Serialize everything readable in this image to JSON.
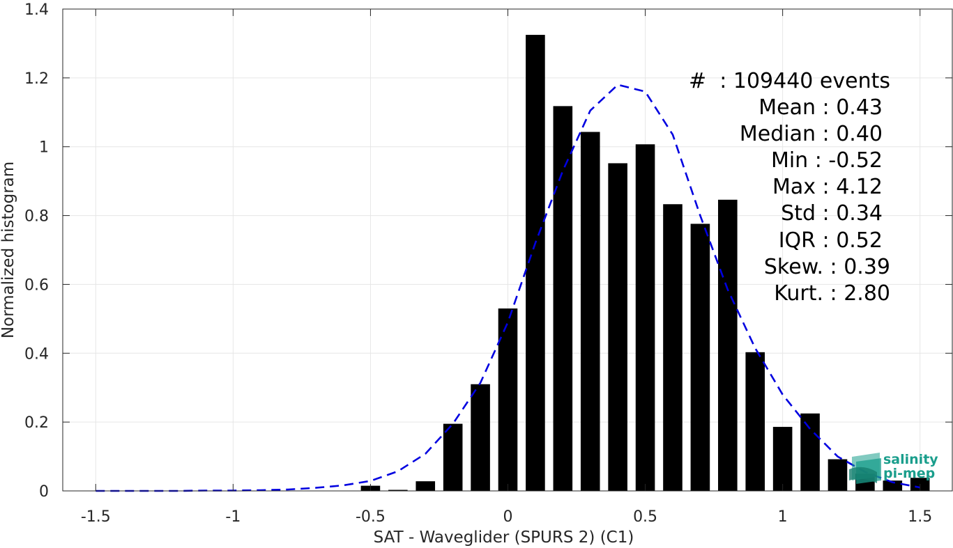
{
  "chart_data": {
    "type": "bar",
    "xlabel": "SAT - Waveglider (SPURS 2) (C1)",
    "ylabel": "Normalized histogram",
    "xlim": [
      -1.62,
      1.62
    ],
    "ylim": [
      0,
      1.4
    ],
    "grid": true,
    "x_ticks": [
      -1.5,
      -1,
      -0.5,
      0,
      0.5,
      1,
      1.5
    ],
    "x_tick_labels": [
      "-1.5",
      "-1",
      "-0.5",
      "0",
      "0.5",
      "1",
      "1.5"
    ],
    "y_ticks": [
      0,
      0.2,
      0.4,
      0.6,
      0.8,
      1,
      1.2,
      1.4
    ],
    "y_tick_labels": [
      "0",
      "0.2",
      "0.4",
      "0.6",
      "0.8",
      "1",
      "1.2",
      "1.4"
    ],
    "bar_width": 0.07,
    "bar_color": "#000000",
    "bars": {
      "x": [
        -0.5,
        -0.4,
        -0.3,
        -0.2,
        -0.1,
        0.0,
        0.1,
        0.2,
        0.3,
        0.4,
        0.5,
        0.6,
        0.7,
        0.8,
        0.9,
        1.0,
        1.1,
        1.2,
        1.3,
        1.4,
        1.5
      ],
      "values": [
        0.015,
        0.003,
        0.028,
        0.195,
        0.31,
        0.53,
        1.325,
        1.118,
        1.043,
        0.952,
        1.007,
        0.833,
        0.776,
        0.846,
        0.403,
        0.186,
        0.225,
        0.092,
        0.05,
        0.03,
        0.038
      ]
    },
    "fit_curve": {
      "style": "dashed",
      "color": "#0000e0",
      "x": [
        -1.5,
        -1.4,
        -1.3,
        -1.2,
        -1.1,
        -1.0,
        -0.9,
        -0.8,
        -0.7,
        -0.6,
        -0.5,
        -0.4,
        -0.3,
        -0.2,
        -0.1,
        0.0,
        0.1,
        0.2,
        0.3,
        0.4,
        0.5,
        0.6,
        0.7,
        0.8,
        0.9,
        1.0,
        1.1,
        1.2,
        1.3,
        1.4,
        1.5
      ],
      "y": [
        0.0,
        0.0,
        0.0,
        0.0,
        0.001,
        0.001,
        0.002,
        0.004,
        0.009,
        0.016,
        0.029,
        0.057,
        0.108,
        0.195,
        0.314,
        0.49,
        0.72,
        0.93,
        1.105,
        1.18,
        1.16,
        1.035,
        0.8,
        0.585,
        0.415,
        0.28,
        0.18,
        0.1,
        0.055,
        0.025,
        0.01
      ]
    },
    "stats_box": {
      "placement": "top-right",
      "lines": [
        "#  : 109440 events",
        "Mean : 0.43",
        "Median : 0.40",
        "Min : -0.52",
        "Max : 4.12",
        "Std : 0.34",
        "IQR : 0.52",
        "Skew. : 0.39",
        "Kurt. : 2.80"
      ]
    }
  },
  "logo": {
    "line1": "salinity",
    "line2": "pi-mep",
    "color": "#1a9e8c"
  }
}
